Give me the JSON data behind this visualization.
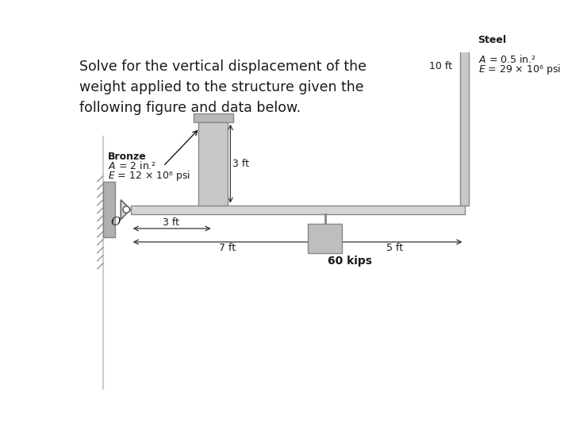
{
  "title_text": "Solve for the vertical displacement of the\nweight applied to the structure given the\nfollowing figure and data below.",
  "title_fontsize": 12.5,
  "title_color": "#1a1a1a",
  "bg_color": "#ffffff",
  "wall_color": "#b0b0b0",
  "beam_color": "#d4d4d4",
  "beam_edge_color": "#888888",
  "column_color": "#c8c8c8",
  "column_edge_color": "#888888",
  "plate_color": "#b8b8b8",
  "plate_edge_color": "#888888",
  "load_color": "#bebebe",
  "load_edge_color": "#888888",
  "arrow_color": "#333333",
  "text_color": "#1a1a1a",
  "bronze_label_line1": "Bronze",
  "bronze_label_line2": "$A$ = 2 in.²",
  "bronze_label_line3": "$E$ = 12 × 10⁶ psi",
  "steel_label_line1": "Steel",
  "steel_label_line2": "$A$ = 0.5 in.²",
  "steel_label_line3": "$E$ = 29 × 10⁶ psi",
  "load_label": "60 kips",
  "O_label": "O",
  "dim_color": "#333333",
  "divider_color": "#cccccc"
}
